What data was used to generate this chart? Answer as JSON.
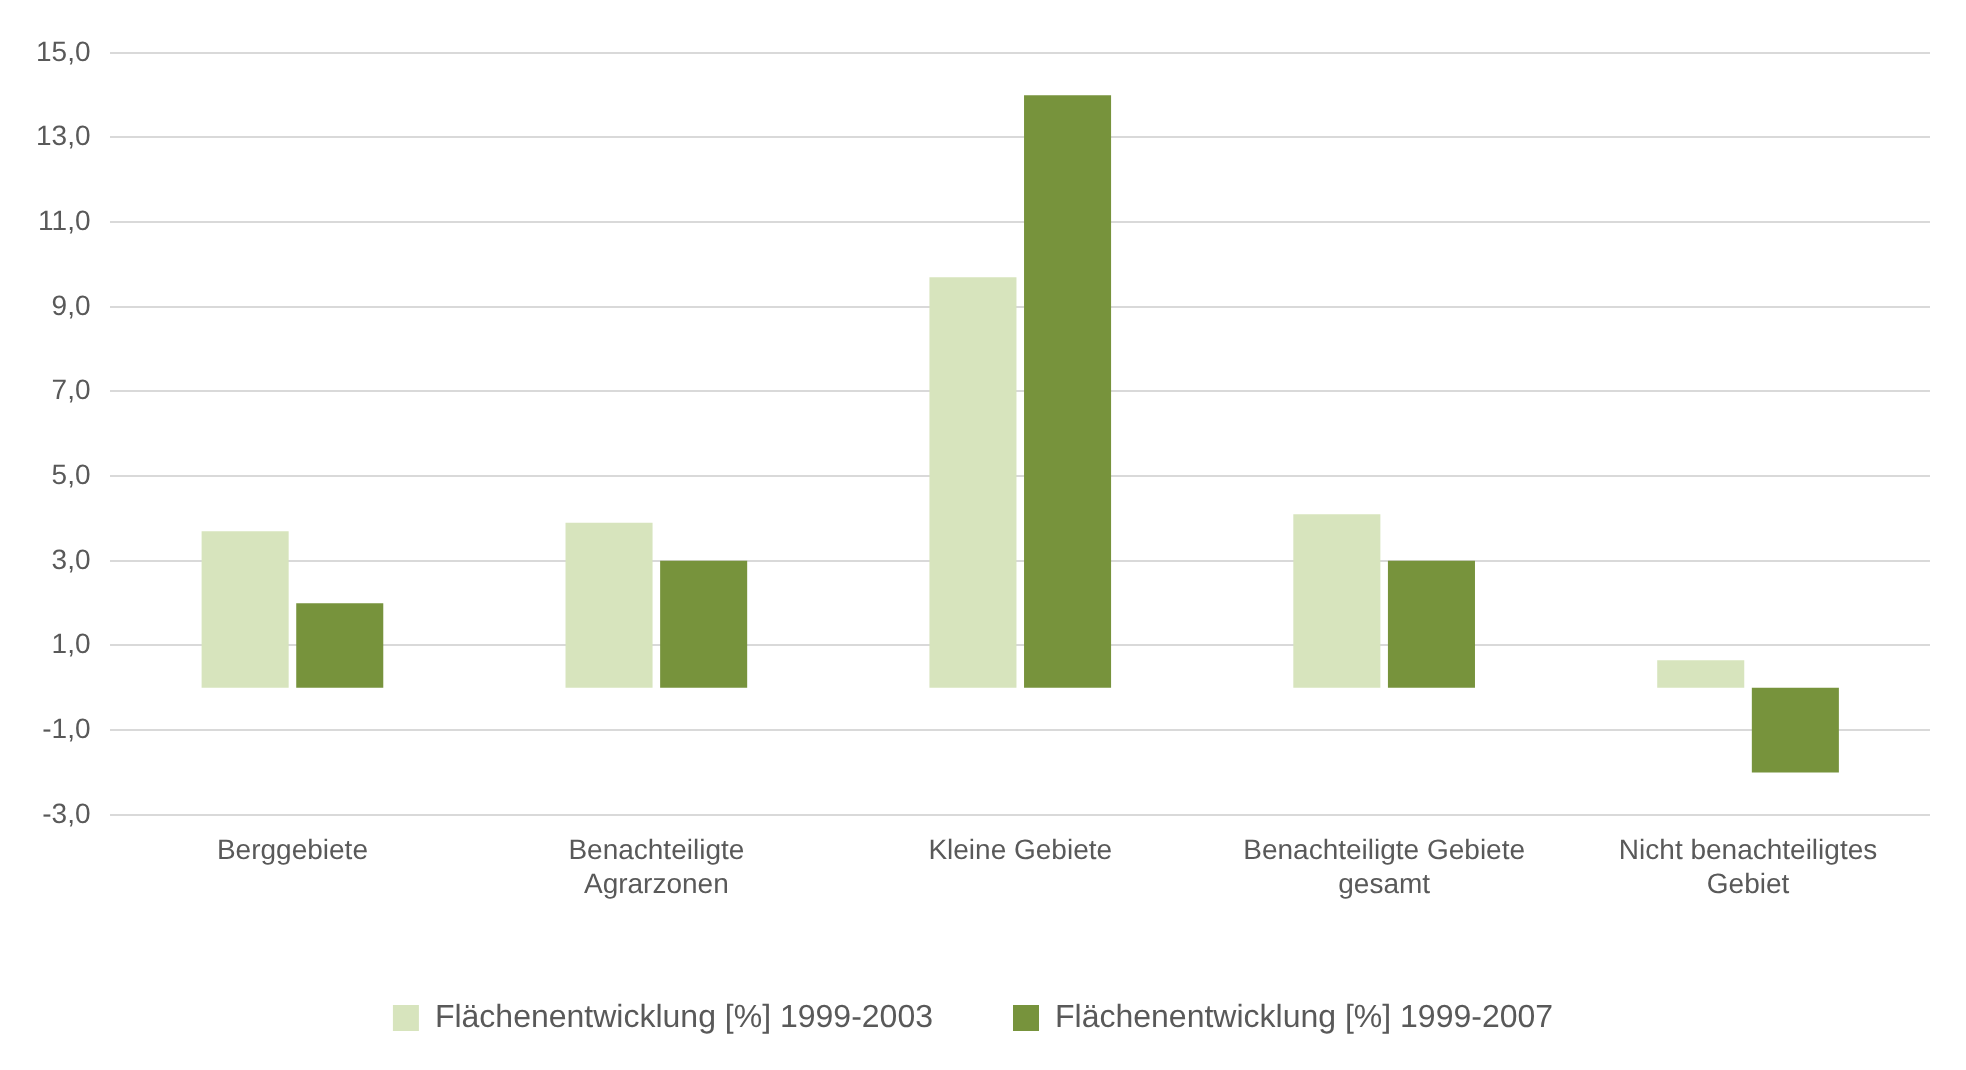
{
  "chart_data": {
    "type": "bar",
    "categories": [
      "Berggebiete",
      "Benachteiligte Agrarzonen",
      "Kleine Gebiete",
      "Benachteiligte Gebiete gesamt",
      "Nicht benachteiligtes Gebiet"
    ],
    "series": [
      {
        "name": "Flächenentwicklung [%] 1999-2003",
        "color": "#d7e4bd",
        "values": [
          3.7,
          3.9,
          9.7,
          4.1,
          0.65
        ]
      },
      {
        "name": "Flächenentwicklung [%] 1999-2007",
        "color": "#77933c",
        "values": [
          2.0,
          3.0,
          14.0,
          3.0,
          -2.0
        ]
      }
    ],
    "ylim": [
      -3,
      15
    ],
    "yticks": [
      {
        "value": -3,
        "label": "-3,0"
      },
      {
        "value": -1,
        "label": "-1,0"
      },
      {
        "value": 1,
        "label": "1,0"
      },
      {
        "value": 3,
        "label": "3,0"
      },
      {
        "value": 5,
        "label": "5,0"
      },
      {
        "value": 7,
        "label": "7,0"
      },
      {
        "value": 9,
        "label": "9,0"
      },
      {
        "value": 11,
        "label": "11,0"
      },
      {
        "value": 13,
        "label": "13,0"
      },
      {
        "value": 15,
        "label": "15,0"
      }
    ],
    "grid": "y",
    "legend": "bottom"
  }
}
